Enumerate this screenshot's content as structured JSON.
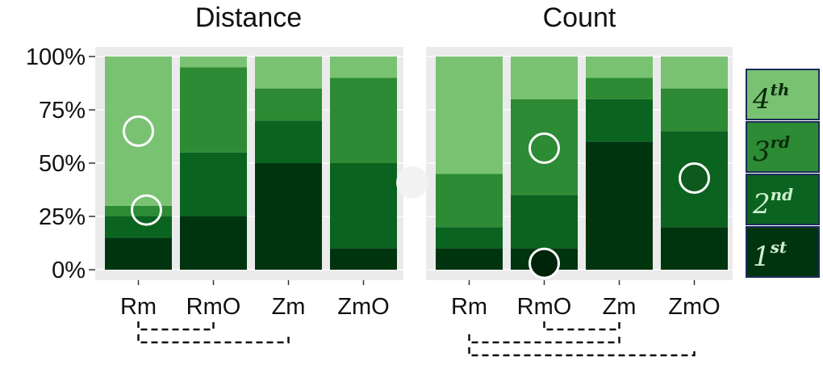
{
  "chart_data": {
    "type": "bar",
    "stacked": true,
    "percent": true,
    "ylim": [
      0,
      100
    ],
    "yticks": [
      "0%",
      "25%",
      "50%",
      "75%",
      "100%"
    ],
    "colors": {
      "1st": "#00340f",
      "2nd": "#0b6320",
      "3rd": "#2c8b34",
      "4th": "#79c272"
    },
    "legend": {
      "placement": "right",
      "entries": [
        {
          "key": "4th",
          "base": "4",
          "sup": "th",
          "text_color": "#0a2a0a"
        },
        {
          "key": "3rd",
          "base": "3",
          "sup": "rd",
          "text_color": "#0a2a0a"
        },
        {
          "key": "2nd",
          "base": "2",
          "sup": "nd",
          "text_color": "#cfeecf"
        },
        {
          "key": "1st",
          "base": "1",
          "sup": "st",
          "text_color": "#cfeecf"
        }
      ]
    },
    "panels": [
      {
        "title": "Distance",
        "categories": [
          "Rm",
          "RmO",
          "Zm",
          "ZmO"
        ],
        "series": [
          {
            "key": "1st",
            "values": [
              15,
              25,
              50,
              10
            ]
          },
          {
            "key": "2nd",
            "values": [
              10,
              30,
              20,
              40
            ]
          },
          {
            "key": "3rd",
            "values": [
              5,
              40,
              15,
              40
            ]
          },
          {
            "key": "4th",
            "values": [
              70,
              5,
              15,
              10
            ]
          }
        ],
        "markers": [
          {
            "category": "Rm",
            "y": 65,
            "style": "open"
          },
          {
            "category": "Rm",
            "y": 28,
            "style": "open"
          }
        ],
        "brackets": [
          [
            "Rm",
            "RmO"
          ],
          [
            "Rm",
            "Zm"
          ]
        ]
      },
      {
        "title": "Count",
        "categories": [
          "Rm",
          "RmO",
          "Zm",
          "ZmO"
        ],
        "series": [
          {
            "key": "1st",
            "values": [
              10,
              10,
              60,
              20
            ]
          },
          {
            "key": "2nd",
            "values": [
              10,
              25,
              20,
              45
            ]
          },
          {
            "key": "3rd",
            "values": [
              25,
              45,
              10,
              20
            ]
          },
          {
            "key": "4th",
            "values": [
              55,
              20,
              10,
              15
            ]
          }
        ],
        "markers": [
          {
            "category": "RmO",
            "y": 57,
            "style": "open"
          },
          {
            "category": "RmO",
            "y": 3,
            "style": "filled"
          },
          {
            "category": "ZmO",
            "y": 43,
            "style": "filled"
          }
        ],
        "brackets": [
          [
            "RmO",
            "Zm"
          ],
          [
            "Rm",
            "Zm"
          ],
          [
            "Rm",
            "ZmO"
          ]
        ]
      }
    ]
  }
}
